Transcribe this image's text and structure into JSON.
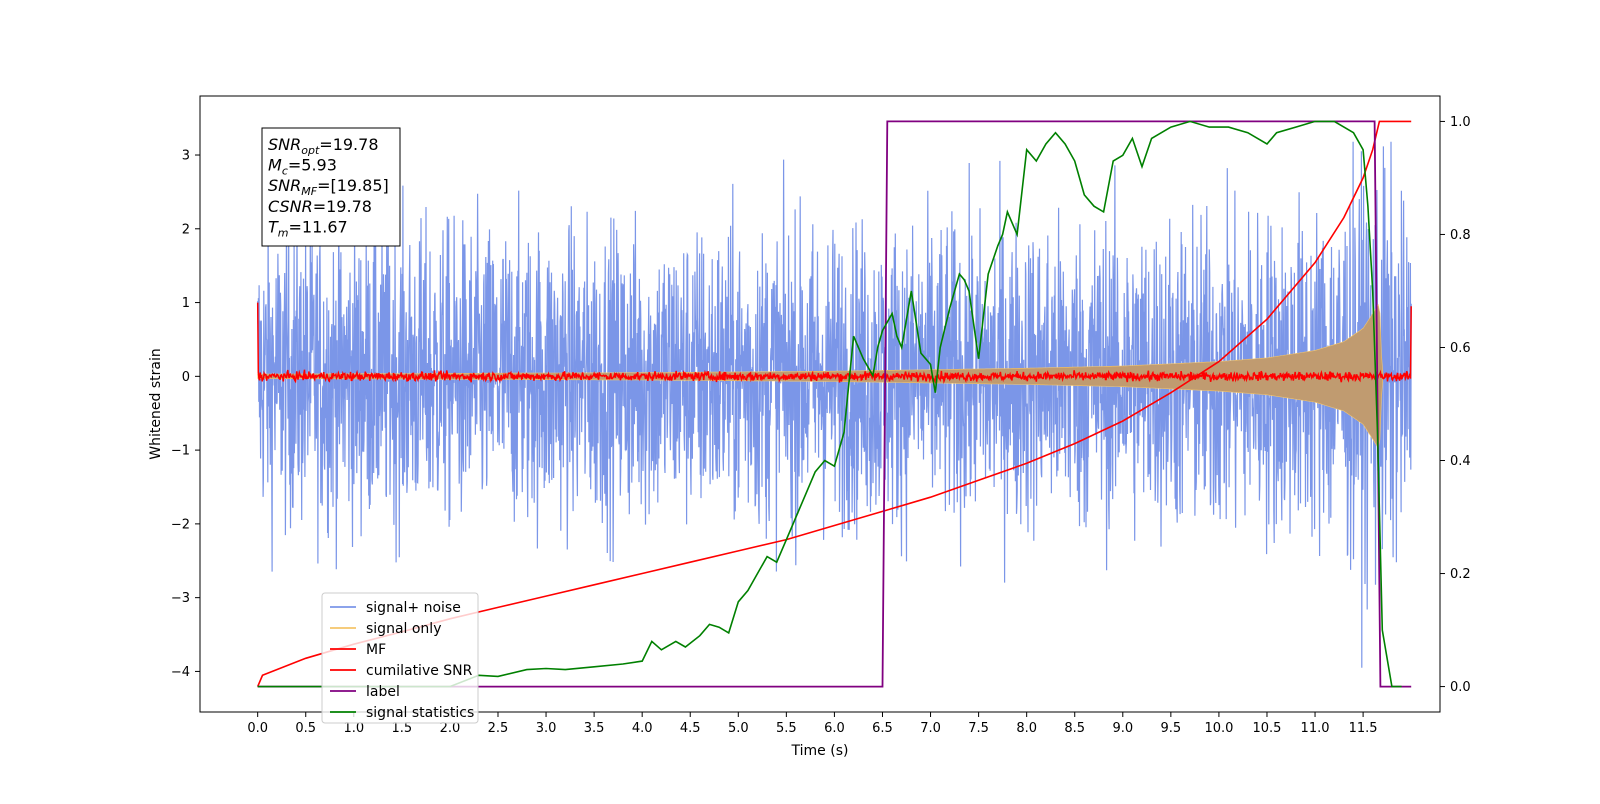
{
  "chart_data": {
    "type": "line",
    "title": "",
    "xlabel": "Time (s)",
    "ylabel": "Whitened strain",
    "xlim": [
      -0.6,
      12.3
    ],
    "ylim": [
      -4.55,
      3.8
    ],
    "y2lim": [
      -0.045,
      1.045
    ],
    "x_ticks": [
      0.0,
      0.5,
      1.0,
      1.5,
      2.0,
      2.5,
      3.0,
      3.5,
      4.0,
      4.5,
      5.0,
      5.5,
      6.0,
      6.5,
      7.0,
      7.5,
      8.0,
      8.5,
      9.0,
      9.5,
      10.0,
      10.5,
      11.0,
      11.5
    ],
    "x_tick_labels": [
      "0.0",
      "0.5",
      "1.0",
      "1.5",
      "2.0",
      "2.5",
      "3.0",
      "3.5",
      "4.0",
      "4.5",
      "5.0",
      "5.5",
      "6.0",
      "6.5",
      "7.0",
      "7.5",
      "8.0",
      "8.5",
      "9.0",
      "9.5",
      "10.0",
      "10.5",
      "11.0",
      "11.5"
    ],
    "y_ticks": [
      -4,
      -3,
      -2,
      -1,
      0,
      1,
      2,
      3
    ],
    "y_tick_labels": [
      "−4",
      "−3",
      "−2",
      "−1",
      "0",
      "1",
      "2",
      "3"
    ],
    "y2_ticks": [
      0.0,
      0.2,
      0.4,
      0.6,
      0.8,
      1.0
    ],
    "y2_tick_labels": [
      "0.0",
      "0.2",
      "0.4",
      "0.6",
      "0.8",
      "1.0"
    ],
    "grid": false,
    "legend_position": "lower-left",
    "legend": [
      "signal+ noise",
      "signal only",
      "MF",
      "cumilative SNR",
      "label",
      "signal statistics"
    ],
    "annotation": {
      "position": "top-left",
      "lines": [
        {
          "symbol": "SNR",
          "sub": "opt",
          "value": "=19.78"
        },
        {
          "symbol": "M",
          "sub": "c",
          "value": "=5.93"
        },
        {
          "symbol": "SNR",
          "sub": "MF",
          "value": "=[19.85]"
        },
        {
          "symbol": "CSNR",
          "sub": "",
          "value": "=19.78"
        },
        {
          "symbol": "T",
          "sub": "m",
          "value": "=11.67"
        }
      ]
    },
    "series": [
      {
        "name": "signal+ noise",
        "axis": "left",
        "color": "#7b96e8",
        "kind": "noise-envelope",
        "x_range": [
          0.0,
          12.0
        ],
        "envelope_x": [
          0.0,
          2.0,
          4.0,
          6.0,
          8.0,
          10.0,
          11.0,
          11.5,
          11.67,
          12.0
        ],
        "envelope_upper": [
          1.6,
          1.6,
          1.6,
          1.6,
          1.65,
          1.7,
          1.8,
          2.1,
          2.3,
          1.6
        ],
        "envelope_lower": [
          -1.6,
          -1.6,
          -1.6,
          -1.6,
          -1.65,
          -1.7,
          -1.8,
          -2.1,
          -2.3,
          -1.6
        ],
        "peak_max": 3.4,
        "peak_min": -3.95
      },
      {
        "name": "signal only",
        "axis": "left",
        "color": "#f4c56a",
        "fill_color": "#c09b70",
        "kind": "chirp-envelope",
        "x": [
          0.0,
          2.0,
          4.0,
          6.0,
          7.0,
          8.0,
          9.0,
          10.0,
          10.5,
          11.0,
          11.3,
          11.5,
          11.6,
          11.67,
          11.7,
          12.0
        ],
        "amplitude": [
          0.03,
          0.04,
          0.05,
          0.07,
          0.09,
          0.11,
          0.14,
          0.2,
          0.25,
          0.35,
          0.47,
          0.65,
          0.85,
          1.0,
          0.0,
          0.0
        ]
      },
      {
        "name": "MF",
        "axis": "left",
        "color": "#ff0000",
        "kind": "noise-band",
        "x_range": [
          0.0,
          12.0
        ],
        "center": 0.0,
        "half_width": 0.06,
        "start_value": 1.0,
        "end_value": 0.95
      },
      {
        "name": "cumilative SNR",
        "axis": "right",
        "color": "#ff0000",
        "kind": "curve",
        "x": [
          0.0,
          0.05,
          0.5,
          1.0,
          1.5,
          2.0,
          2.5,
          3.0,
          3.5,
          4.0,
          4.5,
          5.0,
          5.5,
          6.0,
          6.5,
          7.0,
          7.5,
          8.0,
          8.5,
          9.0,
          9.5,
          10.0,
          10.5,
          11.0,
          11.3,
          11.5,
          11.6,
          11.67,
          12.0
        ],
        "y": [
          0.0,
          0.02,
          0.05,
          0.075,
          0.097,
          0.12,
          0.14,
          0.16,
          0.18,
          0.2,
          0.22,
          0.24,
          0.26,
          0.285,
          0.31,
          0.335,
          0.365,
          0.395,
          0.43,
          0.47,
          0.52,
          0.575,
          0.65,
          0.75,
          0.83,
          0.9,
          0.95,
          1.0,
          1.0
        ]
      },
      {
        "name": "label",
        "axis": "right",
        "color": "#800080",
        "kind": "step",
        "x": [
          0.0,
          6.5,
          6.55,
          11.62,
          11.68,
          12.0
        ],
        "y": [
          0.0,
          0.0,
          1.0,
          1.0,
          0.0,
          0.0
        ]
      },
      {
        "name": "signal statistics",
        "axis": "right",
        "color": "#008000",
        "kind": "curve",
        "x": [
          0.0,
          2.0,
          2.3,
          2.5,
          2.8,
          3.0,
          3.2,
          3.5,
          3.8,
          4.0,
          4.1,
          4.2,
          4.35,
          4.45,
          4.6,
          4.7,
          4.8,
          4.9,
          5.0,
          5.1,
          5.2,
          5.3,
          5.4,
          5.5,
          5.6,
          5.7,
          5.8,
          5.9,
          6.0,
          6.1,
          6.2,
          6.3,
          6.4,
          6.45,
          6.5,
          6.6,
          6.65,
          6.7,
          6.75,
          6.8,
          6.9,
          7.0,
          7.05,
          7.1,
          7.2,
          7.3,
          7.35,
          7.4,
          7.5,
          7.6,
          7.7,
          7.75,
          7.8,
          7.9,
          8.0,
          8.1,
          8.2,
          8.3,
          8.4,
          8.5,
          8.55,
          8.6,
          8.7,
          8.8,
          8.9,
          9.0,
          9.1,
          9.2,
          9.3,
          9.5,
          9.7,
          9.9,
          10.1,
          10.3,
          10.5,
          10.6,
          10.8,
          11.0,
          11.2,
          11.4,
          11.5,
          11.55,
          11.6,
          11.65,
          11.7,
          11.8,
          11.9
        ],
        "y": [
          0.0,
          0.0,
          0.02,
          0.018,
          0.03,
          0.032,
          0.03,
          0.035,
          0.04,
          0.045,
          0.08,
          0.065,
          0.08,
          0.07,
          0.09,
          0.11,
          0.105,
          0.095,
          0.15,
          0.17,
          0.2,
          0.23,
          0.22,
          0.26,
          0.3,
          0.34,
          0.38,
          0.4,
          0.39,
          0.45,
          0.62,
          0.58,
          0.55,
          0.6,
          0.63,
          0.66,
          0.62,
          0.6,
          0.65,
          0.7,
          0.59,
          0.57,
          0.52,
          0.6,
          0.67,
          0.73,
          0.72,
          0.7,
          0.58,
          0.73,
          0.78,
          0.8,
          0.84,
          0.8,
          0.95,
          0.93,
          0.96,
          0.98,
          0.96,
          0.93,
          0.9,
          0.87,
          0.85,
          0.84,
          0.93,
          0.94,
          0.97,
          0.92,
          0.97,
          0.99,
          1.0,
          0.99,
          0.99,
          0.98,
          0.96,
          0.98,
          0.99,
          1.0,
          1.0,
          0.98,
          0.95,
          0.85,
          0.7,
          0.45,
          0.1,
          0.0,
          0.0
        ]
      }
    ]
  }
}
